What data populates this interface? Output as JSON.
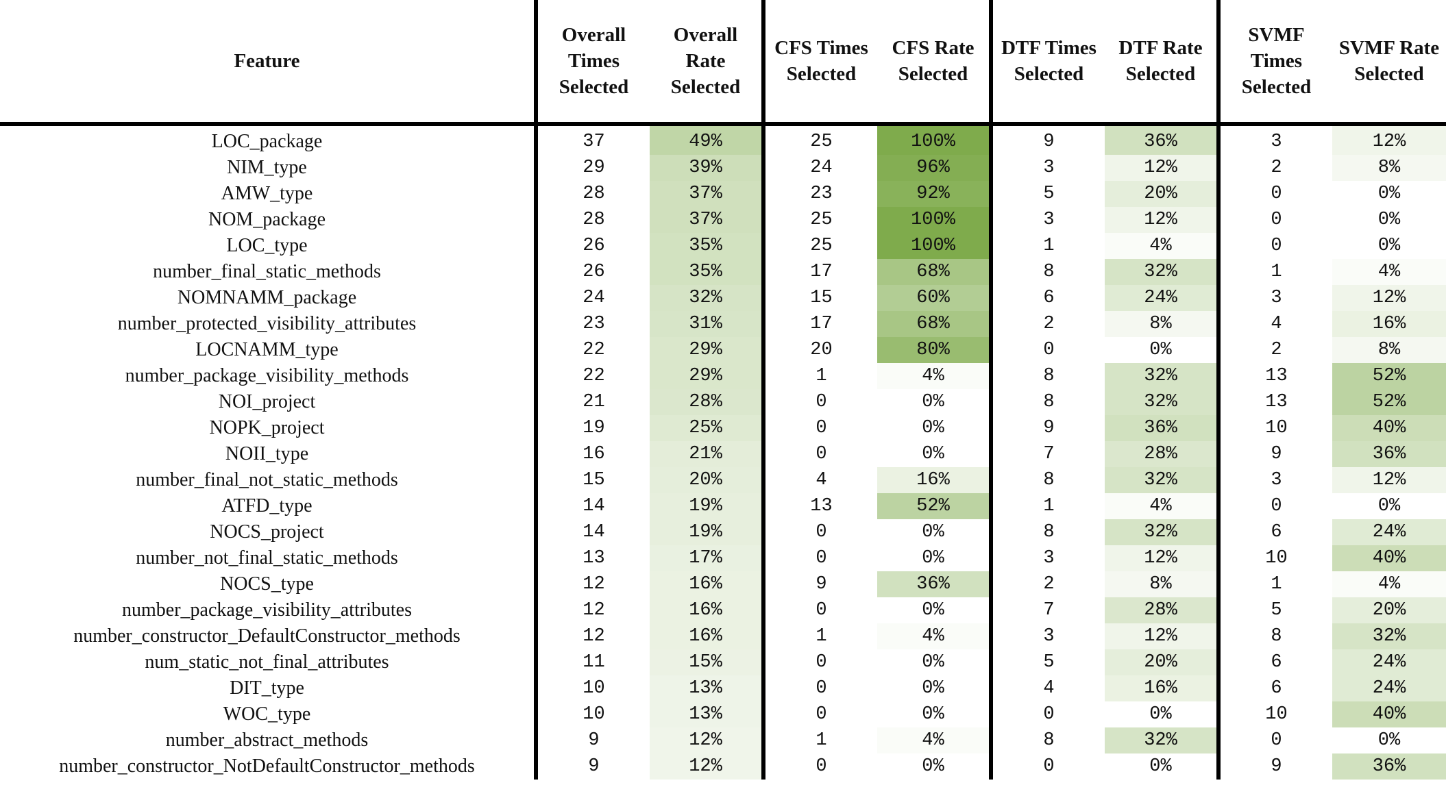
{
  "headers": [
    "Feature",
    "Overall Times Selected",
    "Overall Rate Selected",
    "CFS Times Selected",
    "CFS Rate Selected",
    "DTF Times Selected",
    "DTF Rate Selected",
    "SVMF Times Selected",
    "SVMF Rate Selected"
  ],
  "heat_colors": {
    "low": "#ffffff",
    "high": "#7fab4c"
  },
  "rows": [
    {
      "feature": "LOC_package",
      "overall_times": "37",
      "overall_rate": "49%",
      "cfs_times": "25",
      "cfs_rate": "100%",
      "dtf_times": "9",
      "dtf_rate": "36%",
      "svmf_times": "3",
      "svmf_rate": "12%"
    },
    {
      "feature": "NIM_type",
      "overall_times": "29",
      "overall_rate": "39%",
      "cfs_times": "24",
      "cfs_rate": "96%",
      "dtf_times": "3",
      "dtf_rate": "12%",
      "svmf_times": "2",
      "svmf_rate": "8%"
    },
    {
      "feature": "AMW_type",
      "overall_times": "28",
      "overall_rate": "37%",
      "cfs_times": "23",
      "cfs_rate": "92%",
      "dtf_times": "5",
      "dtf_rate": "20%",
      "svmf_times": "0",
      "svmf_rate": "0%"
    },
    {
      "feature": "NOM_package",
      "overall_times": "28",
      "overall_rate": "37%",
      "cfs_times": "25",
      "cfs_rate": "100%",
      "dtf_times": "3",
      "dtf_rate": "12%",
      "svmf_times": "0",
      "svmf_rate": "0%"
    },
    {
      "feature": "LOC_type",
      "overall_times": "26",
      "overall_rate": "35%",
      "cfs_times": "25",
      "cfs_rate": "100%",
      "dtf_times": "1",
      "dtf_rate": "4%",
      "svmf_times": "0",
      "svmf_rate": "0%"
    },
    {
      "feature": "number_final_static_methods",
      "overall_times": "26",
      "overall_rate": "35%",
      "cfs_times": "17",
      "cfs_rate": "68%",
      "dtf_times": "8",
      "dtf_rate": "32%",
      "svmf_times": "1",
      "svmf_rate": "4%"
    },
    {
      "feature": "NOMNAMM_package",
      "overall_times": "24",
      "overall_rate": "32%",
      "cfs_times": "15",
      "cfs_rate": "60%",
      "dtf_times": "6",
      "dtf_rate": "24%",
      "svmf_times": "3",
      "svmf_rate": "12%"
    },
    {
      "feature": "number_protected_visibility_attributes",
      "overall_times": "23",
      "overall_rate": "31%",
      "cfs_times": "17",
      "cfs_rate": "68%",
      "dtf_times": "2",
      "dtf_rate": "8%",
      "svmf_times": "4",
      "svmf_rate": "16%"
    },
    {
      "feature": "LOCNAMM_type",
      "overall_times": "22",
      "overall_rate": "29%",
      "cfs_times": "20",
      "cfs_rate": "80%",
      "dtf_times": "0",
      "dtf_rate": "0%",
      "svmf_times": "2",
      "svmf_rate": "8%"
    },
    {
      "feature": "number_package_visibility_methods",
      "overall_times": "22",
      "overall_rate": "29%",
      "cfs_times": "1",
      "cfs_rate": "4%",
      "dtf_times": "8",
      "dtf_rate": "32%",
      "svmf_times": "13",
      "svmf_rate": "52%"
    },
    {
      "feature": "NOI_project",
      "overall_times": "21",
      "overall_rate": "28%",
      "cfs_times": "0",
      "cfs_rate": "0%",
      "dtf_times": "8",
      "dtf_rate": "32%",
      "svmf_times": "13",
      "svmf_rate": "52%"
    },
    {
      "feature": "NOPK_project",
      "overall_times": "19",
      "overall_rate": "25%",
      "cfs_times": "0",
      "cfs_rate": "0%",
      "dtf_times": "9",
      "dtf_rate": "36%",
      "svmf_times": "10",
      "svmf_rate": "40%"
    },
    {
      "feature": "NOII_type",
      "overall_times": "16",
      "overall_rate": "21%",
      "cfs_times": "0",
      "cfs_rate": "0%",
      "dtf_times": "7",
      "dtf_rate": "28%",
      "svmf_times": "9",
      "svmf_rate": "36%"
    },
    {
      "feature": "number_final_not_static_methods",
      "overall_times": "15",
      "overall_rate": "20%",
      "cfs_times": "4",
      "cfs_rate": "16%",
      "dtf_times": "8",
      "dtf_rate": "32%",
      "svmf_times": "3",
      "svmf_rate": "12%"
    },
    {
      "feature": "ATFD_type",
      "overall_times": "14",
      "overall_rate": "19%",
      "cfs_times": "13",
      "cfs_rate": "52%",
      "dtf_times": "1",
      "dtf_rate": "4%",
      "svmf_times": "0",
      "svmf_rate": "0%"
    },
    {
      "feature": "NOCS_project",
      "overall_times": "14",
      "overall_rate": "19%",
      "cfs_times": "0",
      "cfs_rate": "0%",
      "dtf_times": "8",
      "dtf_rate": "32%",
      "svmf_times": "6",
      "svmf_rate": "24%"
    },
    {
      "feature": "number_not_final_static_methods",
      "overall_times": "13",
      "overall_rate": "17%",
      "cfs_times": "0",
      "cfs_rate": "0%",
      "dtf_times": "3",
      "dtf_rate": "12%",
      "svmf_times": "10",
      "svmf_rate": "40%"
    },
    {
      "feature": "NOCS_type",
      "overall_times": "12",
      "overall_rate": "16%",
      "cfs_times": "9",
      "cfs_rate": "36%",
      "dtf_times": "2",
      "dtf_rate": "8%",
      "svmf_times": "1",
      "svmf_rate": "4%"
    },
    {
      "feature": "number_package_visibility_attributes",
      "overall_times": "12",
      "overall_rate": "16%",
      "cfs_times": "0",
      "cfs_rate": "0%",
      "dtf_times": "7",
      "dtf_rate": "28%",
      "svmf_times": "5",
      "svmf_rate": "20%"
    },
    {
      "feature": "number_constructor_DefaultConstructor_methods",
      "overall_times": "12",
      "overall_rate": "16%",
      "cfs_times": "1",
      "cfs_rate": "4%",
      "dtf_times": "3",
      "dtf_rate": "12%",
      "svmf_times": "8",
      "svmf_rate": "32%"
    },
    {
      "feature": "num_static_not_final_attributes",
      "overall_times": "11",
      "overall_rate": "15%",
      "cfs_times": "0",
      "cfs_rate": "0%",
      "dtf_times": "5",
      "dtf_rate": "20%",
      "svmf_times": "6",
      "svmf_rate": "24%"
    },
    {
      "feature": "DIT_type",
      "overall_times": "10",
      "overall_rate": "13%",
      "cfs_times": "0",
      "cfs_rate": "0%",
      "dtf_times": "4",
      "dtf_rate": "16%",
      "svmf_times": "6",
      "svmf_rate": "24%"
    },
    {
      "feature": "WOC_type",
      "overall_times": "10",
      "overall_rate": "13%",
      "cfs_times": "0",
      "cfs_rate": "0%",
      "dtf_times": "0",
      "dtf_rate": "0%",
      "svmf_times": "10",
      "svmf_rate": "40%"
    },
    {
      "feature": "number_abstract_methods",
      "overall_times": "9",
      "overall_rate": "12%",
      "cfs_times": "1",
      "cfs_rate": "4%",
      "dtf_times": "8",
      "dtf_rate": "32%",
      "svmf_times": "0",
      "svmf_rate": "0%"
    },
    {
      "feature": "number_constructor_NotDefaultConstructor_methods",
      "overall_times": "9",
      "overall_rate": "12%",
      "cfs_times": "0",
      "cfs_rate": "0%",
      "dtf_times": "0",
      "dtf_rate": "0%",
      "svmf_times": "9",
      "svmf_rate": "36%"
    }
  ]
}
